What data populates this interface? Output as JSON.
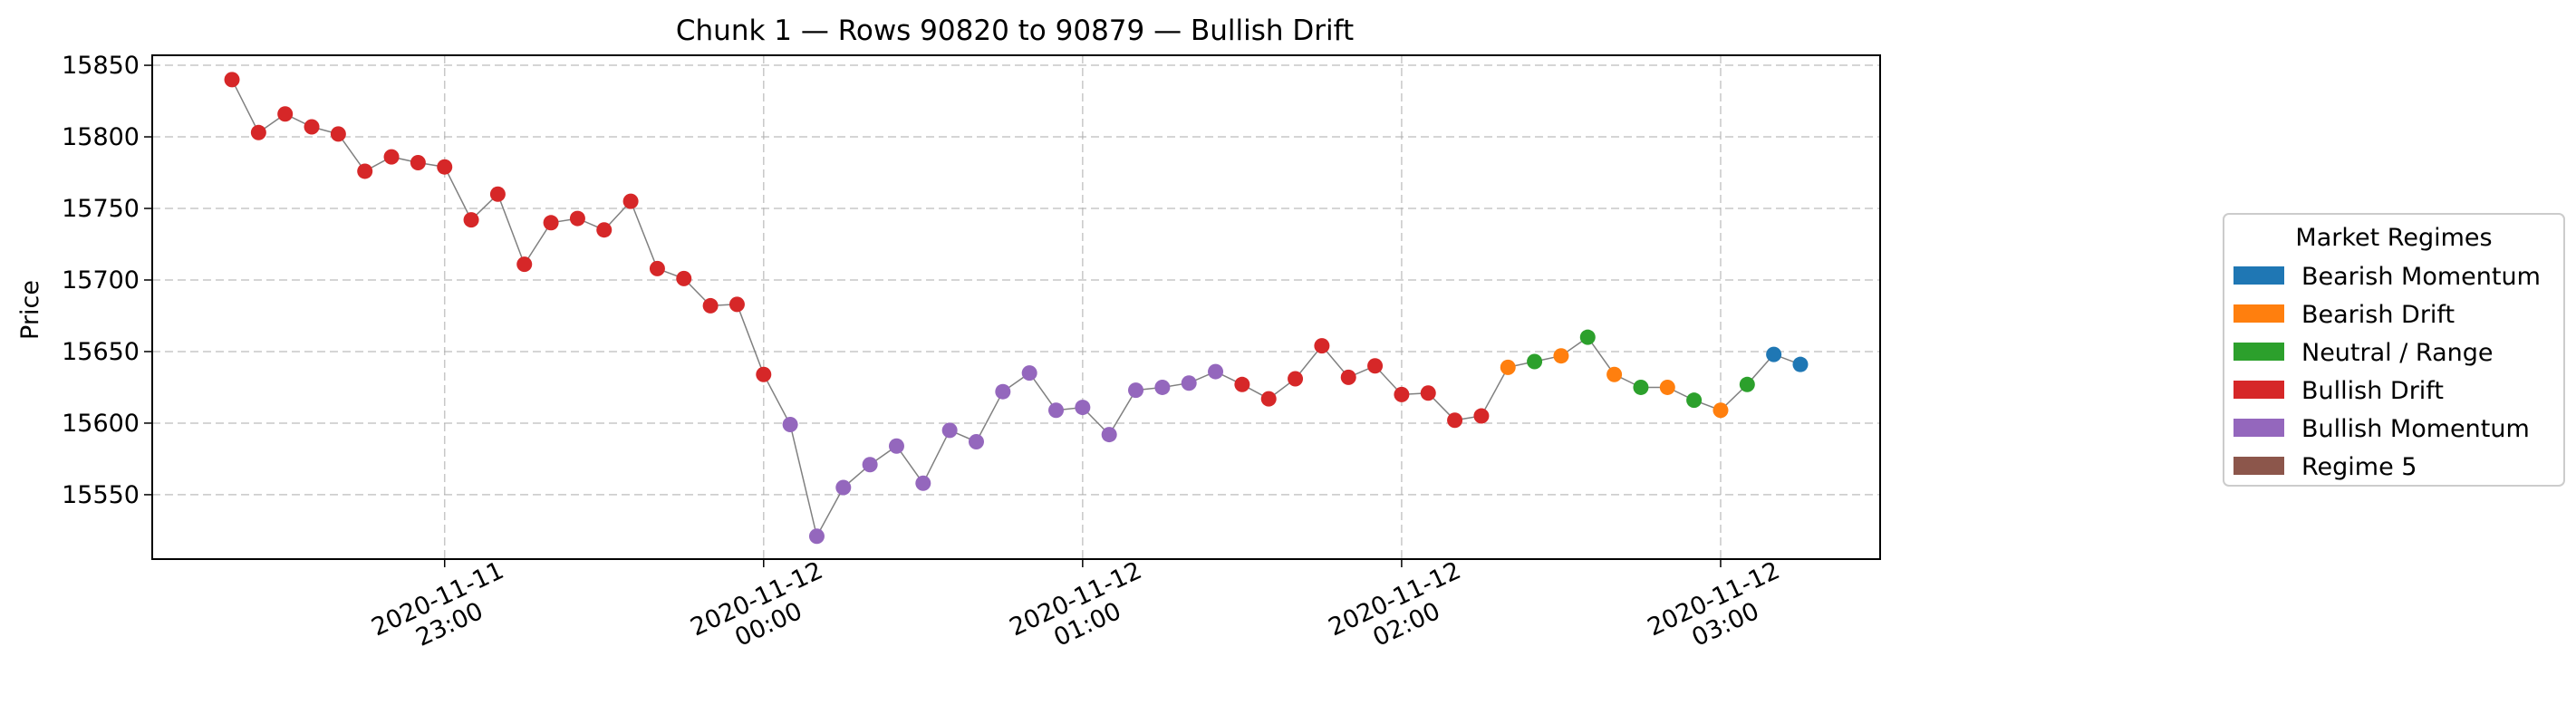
{
  "chart_data": {
    "type": "scatter",
    "title": "Chunk 1 — Rows 90820 to 90879 — Bullish Drift",
    "xlabel": "",
    "ylabel": "Price",
    "x_range": [
      "2020-11-11 22:05",
      "2020-11-12 03:30"
    ],
    "ylim": [
      15505,
      15857
    ],
    "y_ticks": [
      15550,
      15600,
      15650,
      15700,
      15750,
      15800,
      15850
    ],
    "x_ticks": [
      {
        "time": "2020-11-11 23:00",
        "line1": "2020-11-11",
        "line2": "23:00"
      },
      {
        "time": "2020-11-12 00:00",
        "line1": "2020-11-12",
        "line2": "00:00"
      },
      {
        "time": "2020-11-12 01:00",
        "line1": "2020-11-12",
        "line2": "01:00"
      },
      {
        "time": "2020-11-12 02:00",
        "line1": "2020-11-12",
        "line2": "02:00"
      },
      {
        "time": "2020-11-12 03:00",
        "line1": "2020-11-12",
        "line2": "03:00"
      }
    ],
    "grid": true,
    "legend_position": "right",
    "legend_title": "Market Regimes",
    "regimes": [
      {
        "name": "Bearish Momentum",
        "color": "#1f77b4"
      },
      {
        "name": "Bearish Drift",
        "color": "#ff7f0e"
      },
      {
        "name": "Neutral / Range",
        "color": "#2ca02c"
      },
      {
        "name": "Bullish Drift",
        "color": "#d62728"
      },
      {
        "name": "Bullish Momentum",
        "color": "#9467bd"
      },
      {
        "name": "Regime 5",
        "color": "#8c564b"
      }
    ],
    "start_time": "2020-11-11 22:20",
    "interval_minutes": 5,
    "points": [
      {
        "y": 15840,
        "r": 3
      },
      {
        "y": 15803,
        "r": 3
      },
      {
        "y": 15816,
        "r": 3
      },
      {
        "y": 15807,
        "r": 3
      },
      {
        "y": 15802,
        "r": 3
      },
      {
        "y": 15776,
        "r": 3
      },
      {
        "y": 15786,
        "r": 3
      },
      {
        "y": 15782,
        "r": 3
      },
      {
        "y": 15779,
        "r": 3
      },
      {
        "y": 15742,
        "r": 3
      },
      {
        "y": 15760,
        "r": 3
      },
      {
        "y": 15711,
        "r": 3
      },
      {
        "y": 15740,
        "r": 3
      },
      {
        "y": 15743,
        "r": 3
      },
      {
        "y": 15735,
        "r": 3
      },
      {
        "y": 15755,
        "r": 3
      },
      {
        "y": 15708,
        "r": 3
      },
      {
        "y": 15701,
        "r": 3
      },
      {
        "y": 15682,
        "r": 3
      },
      {
        "y": 15683,
        "r": 3
      },
      {
        "y": 15634,
        "r": 3
      },
      {
        "y": 15599,
        "r": 4
      },
      {
        "y": 15521,
        "r": 4
      },
      {
        "y": 15555,
        "r": 4
      },
      {
        "y": 15571,
        "r": 4
      },
      {
        "y": 15584,
        "r": 4
      },
      {
        "y": 15558,
        "r": 4
      },
      {
        "y": 15595,
        "r": 4
      },
      {
        "y": 15587,
        "r": 4
      },
      {
        "y": 15622,
        "r": 4
      },
      {
        "y": 15635,
        "r": 4
      },
      {
        "y": 15609,
        "r": 4
      },
      {
        "y": 15611,
        "r": 4
      },
      {
        "y": 15592,
        "r": 4
      },
      {
        "y": 15623,
        "r": 4
      },
      {
        "y": 15625,
        "r": 4
      },
      {
        "y": 15628,
        "r": 4
      },
      {
        "y": 15636,
        "r": 4
      },
      {
        "y": 15627,
        "r": 3
      },
      {
        "y": 15617,
        "r": 3
      },
      {
        "y": 15631,
        "r": 3
      },
      {
        "y": 15654,
        "r": 3
      },
      {
        "y": 15632,
        "r": 3
      },
      {
        "y": 15640,
        "r": 3
      },
      {
        "y": 15620,
        "r": 3
      },
      {
        "y": 15621,
        "r": 3
      },
      {
        "y": 15602,
        "r": 3
      },
      {
        "y": 15605,
        "r": 3
      },
      {
        "y": 15639,
        "r": 1
      },
      {
        "y": 15643,
        "r": 2
      },
      {
        "y": 15647,
        "r": 1
      },
      {
        "y": 15660,
        "r": 2
      },
      {
        "y": 15634,
        "r": 1
      },
      {
        "y": 15625,
        "r": 2
      },
      {
        "y": 15625,
        "r": 1
      },
      {
        "y": 15616,
        "r": 2
      },
      {
        "y": 15609,
        "r": 1
      },
      {
        "y": 15627,
        "r": 2
      },
      {
        "y": 15648,
        "r": 0
      },
      {
        "y": 15641,
        "r": 0
      }
    ],
    "line_color": "#808080"
  }
}
